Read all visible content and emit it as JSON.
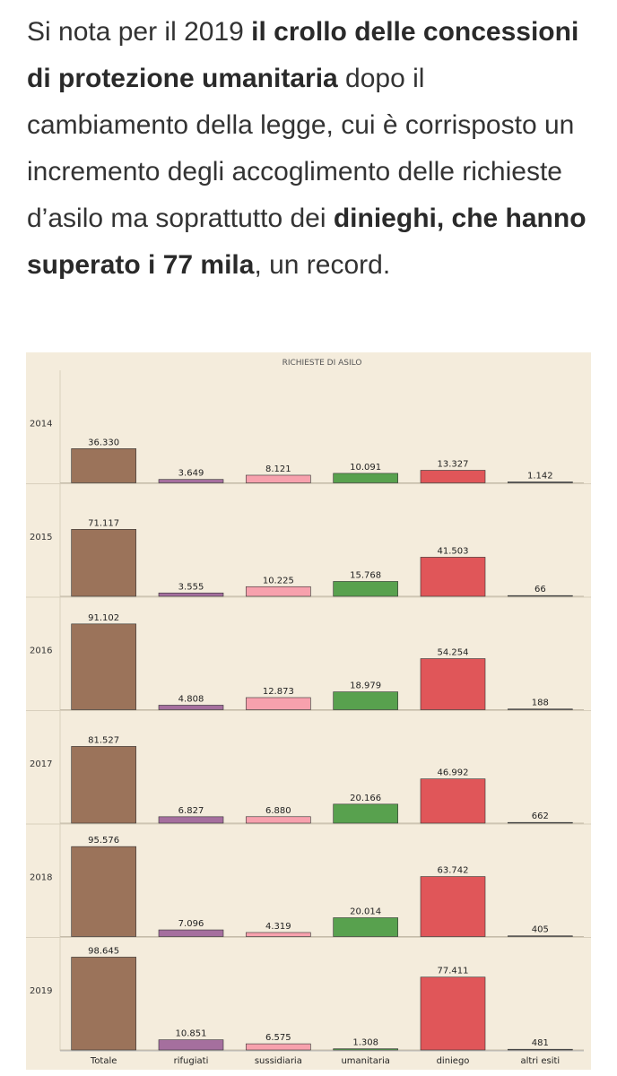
{
  "paragraph": {
    "p1": "Si nota per il 2019 ",
    "b1": "il crollo delle concessioni di protezione umanitaria",
    "p2": " dopo il cambiamento della legge, cui è corrisposto un incremento degli accoglimento delle richieste d’asilo ma soprattutto dei ",
    "b2": "dinieghi, che hanno superato i 77 mila",
    "p3": ", un record."
  },
  "chart_data": {
    "type": "bar",
    "title": "RICHIESTE DI ASILO",
    "categories": [
      "Totale",
      "rifugiati",
      "sussidiaria",
      "umanitaria",
      "diniego",
      "altri esiti"
    ],
    "category_colors": [
      "#9b735a",
      "#a56f9e",
      "#f7a1ad",
      "#58a14e",
      "#e05659",
      "#8a8a8a"
    ],
    "background": "#f4ecdc",
    "ylim": [
      0,
      100000
    ],
    "panels": [
      {
        "label": "2014",
        "values": [
          36330,
          3649,
          8121,
          10091,
          13327,
          1142
        ],
        "labels": [
          "36.330",
          "3.649",
          "8.121",
          "10.091",
          "13.327",
          "1.142"
        ]
      },
      {
        "label": "2015",
        "values": [
          71117,
          3555,
          10225,
          15768,
          41503,
          66
        ],
        "labels": [
          "71.117",
          "3.555",
          "10.225",
          "15.768",
          "41.503",
          "66"
        ]
      },
      {
        "label": "2016",
        "values": [
          91102,
          4808,
          12873,
          18979,
          54254,
          188
        ],
        "labels": [
          "91.102",
          "4.808",
          "12.873",
          "18.979",
          "54.254",
          "188"
        ]
      },
      {
        "label": "2017",
        "values": [
          81527,
          6827,
          6880,
          20166,
          46992,
          662
        ],
        "labels": [
          "81.527",
          "6.827",
          "6.880",
          "20.166",
          "46.992",
          "662"
        ]
      },
      {
        "label": "2018",
        "values": [
          95576,
          7096,
          4319,
          20014,
          63742,
          405
        ],
        "labels": [
          "95.576",
          "7.096",
          "4.319",
          "20.014",
          "63.742",
          "405"
        ]
      },
      {
        "label": "2019",
        "values": [
          98645,
          10851,
          6575,
          1308,
          77411,
          481
        ],
        "labels": [
          "98.645",
          "10.851",
          "6.575",
          "1.308",
          "77.411",
          "481"
        ]
      }
    ]
  }
}
